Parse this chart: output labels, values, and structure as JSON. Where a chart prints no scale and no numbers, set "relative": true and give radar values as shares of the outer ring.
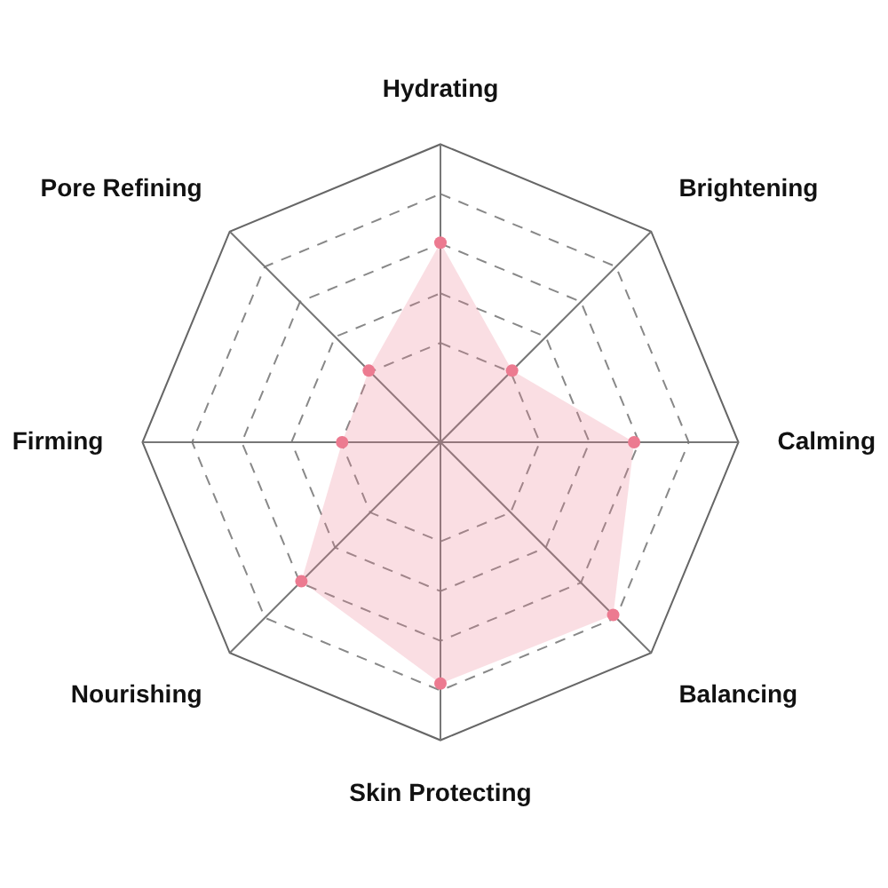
{
  "chart_data": {
    "type": "radar",
    "relative": true,
    "categories": [
      "Hydrating",
      "Brightening",
      "Calming",
      "Balancing",
      "Skin Protecting",
      "Nourishing",
      "Firming",
      "Pore Refining"
    ],
    "series": [
      {
        "color": "#ec7a90",
        "values": [
          0.67,
          0.34,
          0.65,
          0.82,
          0.81,
          0.66,
          0.33,
          0.34
        ]
      }
    ],
    "grid": true,
    "legend": false,
    "marker": "circle"
  }
}
